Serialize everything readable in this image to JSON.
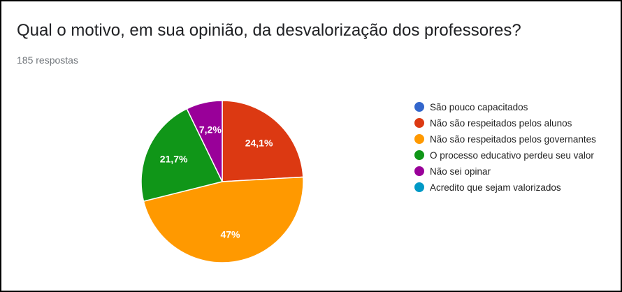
{
  "header": {
    "title": "Qual o motivo, em sua opinião, da desvalorização dos professores?",
    "responses": "185 respostas"
  },
  "chart_data": {
    "type": "pie",
    "slices": [
      {
        "label": "São pouco capacitados",
        "value": 0,
        "color": "#3366cc"
      },
      {
        "label": "Não são respeitados pelos alunos",
        "value": 24.1,
        "color": "#dc3912",
        "data_label": "24,1%"
      },
      {
        "label": "Não são respeitados pelos governantes",
        "value": 47,
        "color": "#ff9900",
        "data_label": "47%"
      },
      {
        "label": "O processo educativo perdeu seu valor",
        "value": 21.7,
        "color": "#109618",
        "data_label": "21,7%"
      },
      {
        "label": "Não sei opinar",
        "value": 7.2,
        "color": "#990099",
        "data_label": "7,2%"
      },
      {
        "label": "Acredito que sejam valorizados",
        "value": 0,
        "color": "#0099c6"
      }
    ],
    "legend_position": "right",
    "start_angle_deg": 90,
    "direction": "clockwise"
  }
}
